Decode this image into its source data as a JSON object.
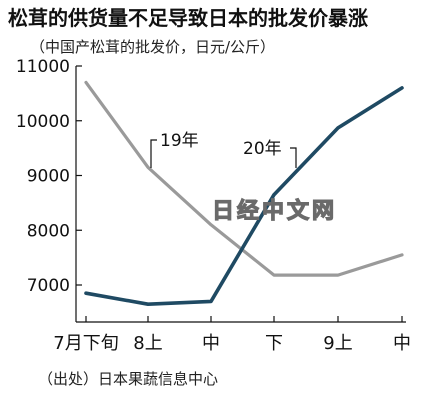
{
  "title": "松茸的供货量不足导致日本的批发价暴涨",
  "subtitle": "（中国产松茸的批发价，日元/公斤）",
  "source": "（出处）日本果蔬信息中心",
  "watermark": "日经中文网",
  "chart_data": {
    "type": "line",
    "title": "松茸的供货量不足导致日本的批发价暴涨",
    "subtitle": "（中国产松茸的批发价，日元/公斤）",
    "xlabel": "",
    "ylabel": "",
    "categories": [
      "7月下旬",
      "8上",
      "中",
      "下",
      "9上",
      "中"
    ],
    "ylim": [
      6400,
      11000
    ],
    "yticks": [
      7000,
      8000,
      9000,
      10000,
      11000
    ],
    "grid": false,
    "series": [
      {
        "name": "19年",
        "values": [
          10700,
          9150,
          8100,
          7180,
          7180,
          7550
        ],
        "color": "#9a9a9a"
      },
      {
        "name": "20年",
        "values": [
          6850,
          6650,
          6700,
          8650,
          9870,
          10600
        ],
        "color": "#1f4a63"
      }
    ]
  }
}
